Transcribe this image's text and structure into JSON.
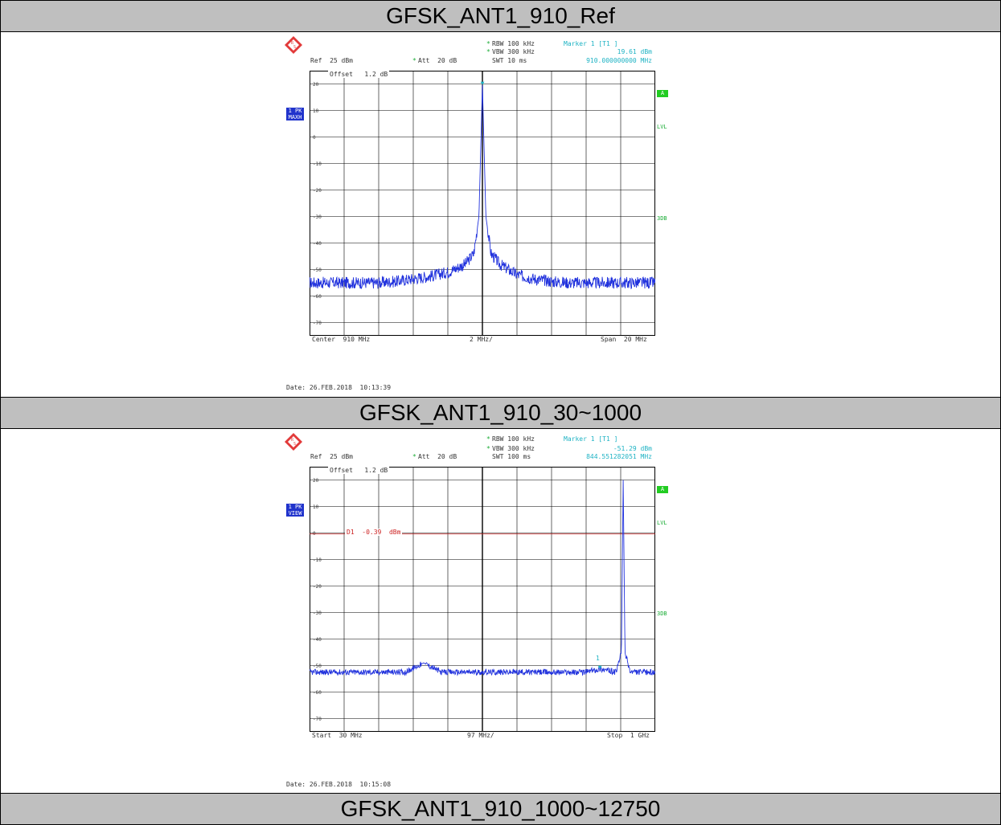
{
  "sections": [
    {
      "title": "GFSK_ANT1_910_Ref",
      "rbw": "RBW 100 kHz",
      "vbw": "VBW 300 kHz",
      "swt": "SWT 10 ms",
      "ref": "Ref  25 dBm",
      "att": "Att  20 dB",
      "offset": "Offset   1.2 dB",
      "marker_title": "Marker 1 [T1 ]",
      "marker_level": "19.61 dBm",
      "marker_freq": "910.000000000 MHz",
      "trace_tag": "1 PK\nMAXH",
      "badge_a": "A",
      "lvl": "LVL",
      "side_3db": "3DB",
      "x_left": "Center  910 MHz",
      "x_mid": "2 MHz/",
      "x_right": "Span  20 MHz",
      "date": "Date: 26.FEB.2018  10:13:39",
      "yticks": [
        "20",
        "10",
        "0",
        "-10",
        "-20",
        "-30",
        "-40",
        "-50",
        "-60",
        "-70"
      ]
    },
    {
      "title": "GFSK_ANT1_910_30~1000",
      "rbw": "RBW 100 kHz",
      "vbw": "VBW 300 kHz",
      "swt": "SWT 100 ms",
      "ref": "Ref  25 dBm",
      "att": "Att  20 dB",
      "offset": "Offset   1.2 dB",
      "marker_title": "Marker 1 [T1 ]",
      "marker_level": "-51.29 dBm",
      "marker_freq": "844.551282051 MHz",
      "trace_tag": "1 PK\nVIEW",
      "badge_a": "A",
      "lvl": "LVL",
      "side_3db": "3DB",
      "d1_label": "D1  -0.39  dBm",
      "marker_num": "1",
      "x_left": "Start  30 MHz",
      "x_mid": "97 MHz/",
      "x_right": "Stop  1 GHz",
      "date": "Date: 26.FEB.2018  10:15:08",
      "yticks": [
        "20",
        "10",
        "0",
        "-10",
        "-20",
        "-30",
        "-40",
        "-50",
        "-60",
        "-70"
      ]
    },
    {
      "title": "GFSK_ANT1_910_1000~12750"
    }
  ],
  "chart_data": [
    {
      "type": "line",
      "title": "GFSK_ANT1_910_Ref",
      "xlabel": "",
      "ylabel": "",
      "x_range_MHz": [
        900,
        920
      ],
      "ylim": [
        -75,
        25
      ],
      "grid": true,
      "series": [
        {
          "x": [
            900,
            901,
            902,
            903,
            904,
            905,
            906,
            907,
            908,
            909,
            909.5,
            909.8,
            910,
            910.2,
            910.5,
            911,
            912,
            913,
            914,
            915,
            916,
            917,
            918,
            919,
            920
          ],
          "values": [
            -55,
            -55,
            -55,
            -55,
            -55,
            -54.5,
            -53.5,
            -52.5,
            -51,
            -48,
            -44,
            -30,
            19.61,
            -30,
            -44,
            -48,
            -52,
            -53.5,
            -54.5,
            -55,
            -55,
            -55,
            -55,
            -55,
            -55
          ]
        }
      ],
      "marker": {
        "x": 910,
        "y": 19.61
      }
    },
    {
      "type": "line",
      "title": "GFSK_ANT1_910_30~1000",
      "xlabel": "",
      "ylabel": "",
      "x_range_MHz": [
        30,
        1000
      ],
      "ylim": [
        -75,
        25
      ],
      "grid": true,
      "reference_line_dBm": -0.39,
      "series": [
        {
          "x": [
            30,
            100,
            200,
            300,
            350,
            400,
            500,
            600,
            700,
            800,
            844.55,
            890,
            905,
            910,
            915,
            930,
            1000
          ],
          "values": [
            -52.5,
            -52.5,
            -52.5,
            -52.5,
            -49,
            -52.5,
            -52.5,
            -52.5,
            -52.5,
            -52.5,
            -51.29,
            -52.5,
            -45,
            20,
            -45,
            -52.5,
            -52.5
          ]
        }
      ],
      "marker": {
        "x": 844.55,
        "y": -51.29
      }
    }
  ]
}
